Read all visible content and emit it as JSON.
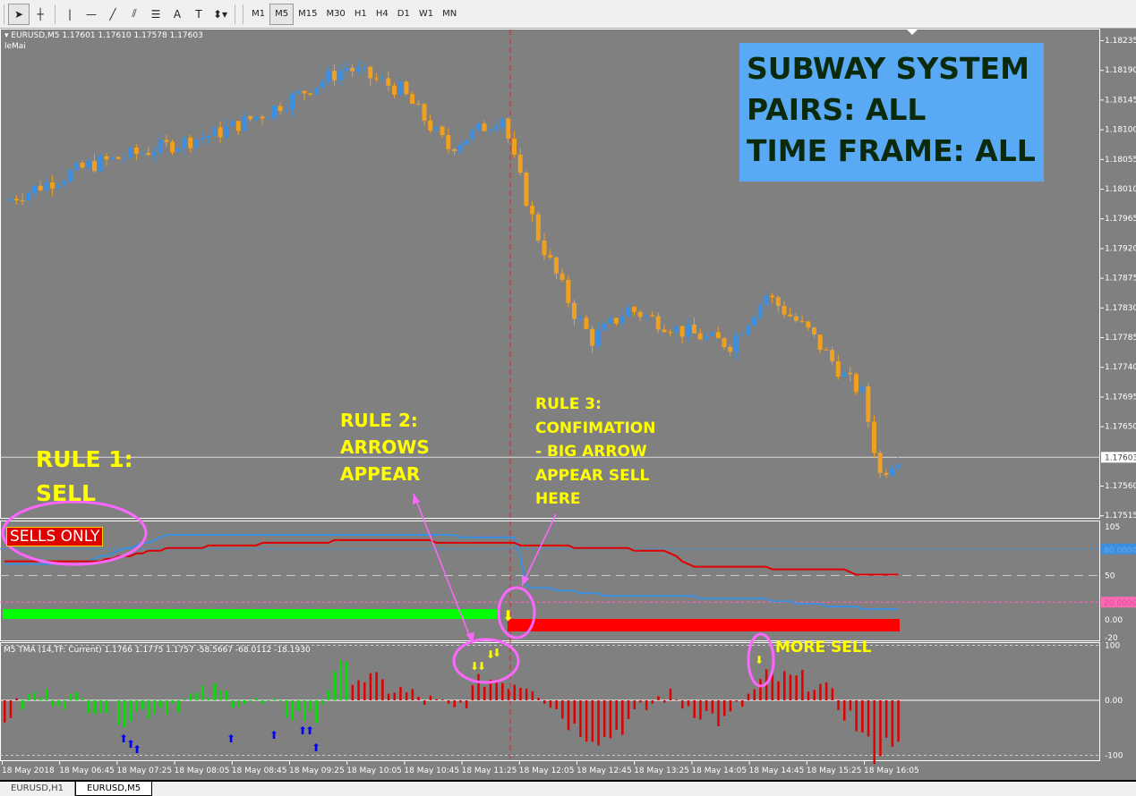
{
  "toolbar": {
    "tools": [
      {
        "icon": "cursor-icon",
        "glyph": "➤"
      },
      {
        "icon": "crosshair-icon",
        "glyph": "┼"
      },
      {
        "icon": "vertical-line-icon",
        "glyph": "|"
      },
      {
        "icon": "horizontal-line-icon",
        "glyph": "—"
      },
      {
        "icon": "trendline-icon",
        "glyph": "╱"
      },
      {
        "icon": "fibonacci-channel-icon",
        "glyph": "⫽"
      },
      {
        "icon": "fibonacci-retracement-icon",
        "glyph": "☰"
      },
      {
        "icon": "text-icon",
        "glyph": "A"
      },
      {
        "icon": "text-label-icon",
        "glyph": "T"
      },
      {
        "icon": "arrows-dropdown-icon",
        "glyph": "⬍▾"
      }
    ],
    "timeframes": [
      "M1",
      "M5",
      "M15",
      "M30",
      "H1",
      "H4",
      "D1",
      "W1",
      "MN"
    ],
    "active_timeframe": "M5"
  },
  "main": {
    "header": "▾ EURUSD,M5  1.17601 1.17610 1.17578 1.17603",
    "indicator_name": "leMai",
    "price_ticks": [
      "1.18235",
      "1.18190",
      "1.18145",
      "1.18100",
      "1.18055",
      "1.18010",
      "1.17965",
      "1.17920",
      "1.17875",
      "1.17830",
      "1.17785",
      "1.17740",
      "1.17695",
      "1.17650",
      "1.17560",
      "1.17515"
    ],
    "current_price": "1.17603",
    "bull_color": "#3a8fe0",
    "bear_color": "#f0a020",
    "price_path": [
      [
        0,
        1.17991
      ],
      [
        14,
        1.18045
      ],
      [
        35,
        1.18093
      ],
      [
        44,
        1.18127
      ],
      [
        57,
        1.18194
      ],
      [
        66,
        1.1816
      ],
      [
        74,
        1.18072
      ],
      [
        83,
        1.1812
      ],
      [
        85,
        1.18052
      ],
      [
        89,
        1.17937
      ],
      [
        95,
        1.17822
      ],
      [
        98,
        1.17781
      ],
      [
        104,
        1.17828
      ],
      [
        113,
        1.17794
      ],
      [
        121,
        1.17774
      ],
      [
        127,
        1.17849
      ],
      [
        134,
        1.17794
      ],
      [
        140,
        1.17726
      ],
      [
        143,
        1.177
      ],
      [
        146,
        1.17577
      ],
      [
        149,
        1.17605
      ]
    ]
  },
  "info_box": {
    "lines": [
      "SUBWAY SYSTEM",
      "PAIRS: ALL",
      "TIME FRAME: ALL"
    ],
    "bg": "#5aa9f5"
  },
  "annotations": {
    "rule1": [
      "RULE 1:",
      "SELL"
    ],
    "rule2": [
      "RULE 2:",
      "ARROWS",
      "APPEAR"
    ],
    "rule3": [
      "RULE 3:",
      "CONFIMATION",
      "- BIG ARROW",
      "APPEAR SELL",
      "HERE"
    ],
    "more_sell": "MORE SELL",
    "sells_only": "SELLS ONLY"
  },
  "stoch_panel": {
    "ticks": [
      "105",
      "50",
      "0.00",
      "-20"
    ],
    "level_high": "80.0000",
    "level_low": "20.0000",
    "blue_path": [
      [
        0,
        62
      ],
      [
        12,
        62
      ],
      [
        27,
        95
      ],
      [
        41,
        97
      ],
      [
        70,
        96
      ],
      [
        85,
        92
      ],
      [
        86,
        72
      ],
      [
        87,
        38
      ],
      [
        100,
        28
      ],
      [
        125,
        24
      ],
      [
        140,
        14
      ],
      [
        149,
        12
      ]
    ],
    "red_path": [
      [
        0,
        65
      ],
      [
        14,
        65
      ],
      [
        27,
        80
      ],
      [
        40,
        85
      ],
      [
        57,
        89
      ],
      [
        85,
        88
      ],
      [
        86,
        85
      ],
      [
        110,
        78
      ],
      [
        115,
        60
      ],
      [
        140,
        57
      ],
      [
        142,
        50
      ],
      [
        149,
        50
      ]
    ]
  },
  "tma_panel": {
    "label": "M5 TMA (14,TF: Current)  1.1766 1.1775 1.1757 -58.5667 -68.0112 -18.1930",
    "ticks": [
      "100",
      "0.00",
      "-100"
    ]
  },
  "time_labels": [
    "18 May 2018",
    "18 May 06:45",
    "18 May 07:25",
    "18 May 08:05",
    "18 May 08:45",
    "18 May 09:25",
    "18 May 10:05",
    "18 May 10:45",
    "18 May 11:25",
    "18 May 12:05",
    "18 May 12:45",
    "18 May 13:25",
    "18 May 14:05",
    "18 May 14:45",
    "18 May 15:25",
    "18 May 16:05"
  ],
  "tabs": [
    "EURUSD,H1",
    "EURUSD,M5"
  ],
  "active_tab": "EURUSD,M5"
}
